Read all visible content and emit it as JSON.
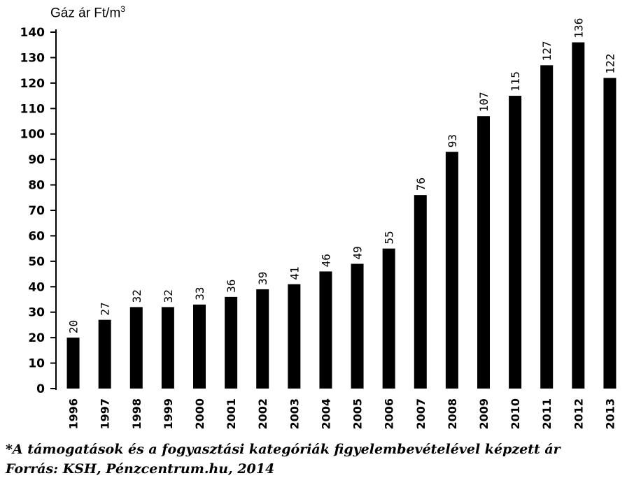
{
  "chart_data": {
    "type": "bar",
    "ylabel": "Gáz ár Ft/m",
    "ylabel_sup": "3",
    "categories": [
      "1996",
      "1997",
      "1998",
      "1999",
      "2000",
      "2001",
      "2002",
      "2003",
      "2004",
      "2005",
      "2006",
      "2007",
      "2008",
      "2009",
      "2010",
      "2011",
      "2012",
      "2013"
    ],
    "values": [
      20,
      27,
      32,
      32,
      33,
      36,
      39,
      41,
      46,
      49,
      55,
      76,
      93,
      107,
      115,
      127,
      136,
      122
    ],
    "ylim": [
      0,
      140
    ],
    "yticks": [
      0,
      10,
      20,
      30,
      40,
      50,
      60,
      70,
      80,
      90,
      100,
      110,
      120,
      130,
      140
    ],
    "grid": false,
    "bar_color": "#000000"
  },
  "footnote": "*A támogatások és a fogyasztási kategóriák figyelembevételével képzett ár",
  "source": "Forrás: KSH, Pénzcentrum.hu, 2014"
}
